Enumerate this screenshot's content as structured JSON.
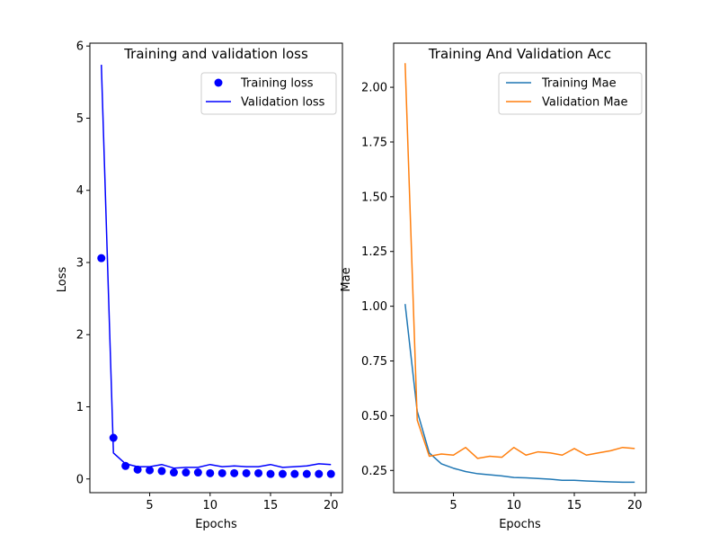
{
  "chart_data": [
    {
      "type": "line",
      "title": "Training and validation loss",
      "xlabel": "Epochs",
      "ylabel": "Loss",
      "xlim": [
        0.05,
        20.95
      ],
      "ylim": [
        -0.19,
        6.04
      ],
      "xticks": [
        5,
        10,
        15,
        20
      ],
      "yticks": [
        0,
        1,
        2,
        3,
        4,
        5,
        6
      ],
      "grid": false,
      "legend_position": "top-right",
      "x": [
        1,
        2,
        3,
        4,
        5,
        6,
        7,
        8,
        9,
        10,
        11,
        12,
        13,
        14,
        15,
        16,
        17,
        18,
        19,
        20
      ],
      "series": [
        {
          "name": "Training loss",
          "style": "markers",
          "color": "#0000ff",
          "values": [
            3.06,
            0.57,
            0.18,
            0.13,
            0.12,
            0.11,
            0.09,
            0.09,
            0.09,
            0.08,
            0.08,
            0.08,
            0.08,
            0.08,
            0.07,
            0.07,
            0.07,
            0.07,
            0.07,
            0.07
          ]
        },
        {
          "name": "Validation loss",
          "style": "line",
          "color": "#0000ff",
          "values": [
            5.74,
            0.36,
            0.21,
            0.17,
            0.17,
            0.2,
            0.15,
            0.16,
            0.16,
            0.2,
            0.17,
            0.18,
            0.17,
            0.17,
            0.2,
            0.16,
            0.17,
            0.18,
            0.21,
            0.2
          ]
        }
      ]
    },
    {
      "type": "line",
      "title": "Training And Validation Acc",
      "xlabel": "Epochs",
      "ylabel": "Mae",
      "xlim": [
        0.05,
        20.95
      ],
      "ylim": [
        0.1485,
        2.2015
      ],
      "xticks": [
        5,
        10,
        15,
        20
      ],
      "yticks": [
        0.25,
        0.5,
        0.75,
        1.0,
        1.25,
        1.5,
        1.75,
        2.0
      ],
      "ytick_labels": [
        "0.25",
        "0.50",
        "0.75",
        "1.00",
        "1.25",
        "1.50",
        "1.75",
        "2.00"
      ],
      "grid": false,
      "legend_position": "top-right",
      "x": [
        1,
        2,
        3,
        4,
        5,
        6,
        7,
        8,
        9,
        10,
        11,
        12,
        13,
        14,
        15,
        16,
        17,
        18,
        19,
        20
      ],
      "series": [
        {
          "name": "Training Mae",
          "style": "line",
          "color": "#1f77b4",
          "values": [
            1.01,
            0.52,
            0.33,
            0.28,
            0.26,
            0.245,
            0.235,
            0.23,
            0.225,
            0.218,
            0.216,
            0.213,
            0.21,
            0.205,
            0.205,
            0.202,
            0.2,
            0.198,
            0.196,
            0.196
          ]
        },
        {
          "name": "Validation Mae",
          "style": "line",
          "color": "#ff7f0e",
          "values": [
            2.11,
            0.48,
            0.315,
            0.325,
            0.32,
            0.355,
            0.305,
            0.315,
            0.31,
            0.355,
            0.32,
            0.335,
            0.33,
            0.32,
            0.35,
            0.32,
            0.33,
            0.34,
            0.355,
            0.35
          ]
        }
      ]
    }
  ]
}
